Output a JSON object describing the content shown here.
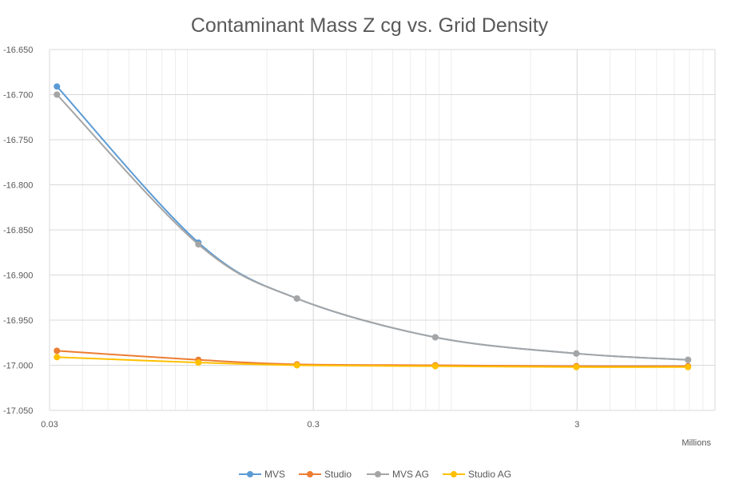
{
  "chart_data": {
    "type": "scatter",
    "title": "Contaminant Mass Z cg vs. Grid Density",
    "xlabel": "",
    "x_unit_label": "Millions",
    "ylabel": "",
    "x_scale": "log",
    "xlim": [
      0.03,
      10
    ],
    "ylim": [
      -17.05,
      -16.65
    ],
    "x_ticks": [
      "0.03",
      "0.3",
      "3"
    ],
    "y_ticks": [
      "-16.650",
      "-16.700",
      "-16.750",
      "-16.800",
      "-16.850",
      "-16.900",
      "-16.950",
      "-17.000",
      "-17.050"
    ],
    "grid": true,
    "legend_position": "bottom",
    "series": [
      {
        "name": "MVS",
        "color": "#5B9BD5",
        "x": [
          0.032,
          0.11,
          0.26,
          0.87,
          2.98,
          7.9
        ],
        "y": [
          -16.691,
          -16.864,
          -16.926,
          -16.969,
          -16.987,
          -16.994
        ]
      },
      {
        "name": "Studio",
        "color": "#ED7D31",
        "x": [
          0.032,
          0.11,
          0.26,
          0.87,
          2.98,
          7.9
        ],
        "y": [
          -16.984,
          -16.994,
          -16.999,
          -17.0,
          -17.001,
          -17.001
        ]
      },
      {
        "name": "MVS AG",
        "color": "#A5A5A5",
        "x": [
          0.032,
          0.11,
          0.26,
          0.87,
          2.98,
          7.9
        ],
        "y": [
          -16.7,
          -16.866,
          -16.926,
          -16.969,
          -16.987,
          -16.994
        ]
      },
      {
        "name": "Studio AG",
        "color": "#FFC000",
        "x": [
          0.032,
          0.11,
          0.26,
          0.87,
          2.98,
          7.9
        ],
        "y": [
          -16.991,
          -16.997,
          -17.0,
          -17.001,
          -17.002,
          -17.002
        ]
      }
    ]
  }
}
